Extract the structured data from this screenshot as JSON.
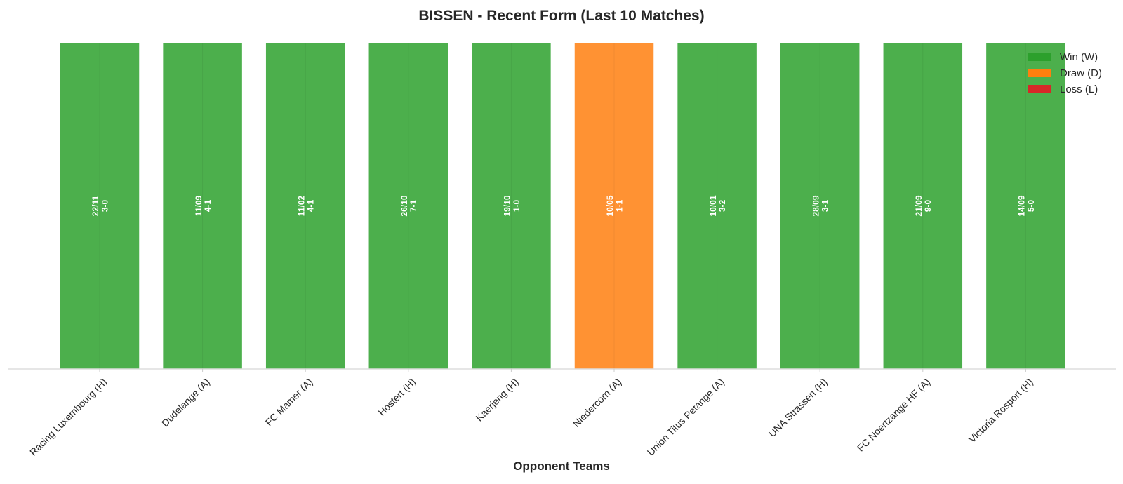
{
  "chart_data": {
    "type": "bar",
    "title": "BISSEN - Recent Form (Last 10 Matches)",
    "xlabel": "Opponent Teams",
    "ylabel": "",
    "categories": [
      "Racing Luxembourg (H)",
      "Dudelange (A)",
      "FC Mamer (A)",
      "Hostert (H)",
      "Kaerjeng (H)",
      "Niedercorn (A)",
      "Union Titus Petange (A)",
      "UNA Strassen (H)",
      "FC Noertzange HF (A)",
      "Victoria Rosport (H)"
    ],
    "values": [
      1,
      1,
      1,
      1,
      1,
      1,
      1,
      1,
      1,
      1
    ],
    "results": [
      "W",
      "W",
      "W",
      "W",
      "W",
      "D",
      "W",
      "W",
      "W",
      "W"
    ],
    "dates": [
      "22/11",
      "11/09",
      "11/02",
      "26/10",
      "19/10",
      "10/05",
      "10/01",
      "28/09",
      "21/09",
      "14/09"
    ],
    "scores": [
      "3-0",
      "4-1",
      "4-1",
      "7-1",
      "1-0",
      "1-1",
      "3-2",
      "3-1",
      "9-0",
      "5-0"
    ],
    "ylim": [
      0,
      1
    ],
    "grid": false,
    "legend": {
      "placement": "top-right",
      "entries": [
        {
          "label": "Win (W)",
          "color": "#2ca02c"
        },
        {
          "label": "Draw (D)",
          "color": "#ff7f0e"
        },
        {
          "label": "Loss (L)",
          "color": "#d62728"
        }
      ]
    },
    "colors": {
      "W": "#4caf4c",
      "D": "#ff9233",
      "L": "#d62728",
      "edge": "#ffffff",
      "axis": "#cccccc"
    }
  }
}
